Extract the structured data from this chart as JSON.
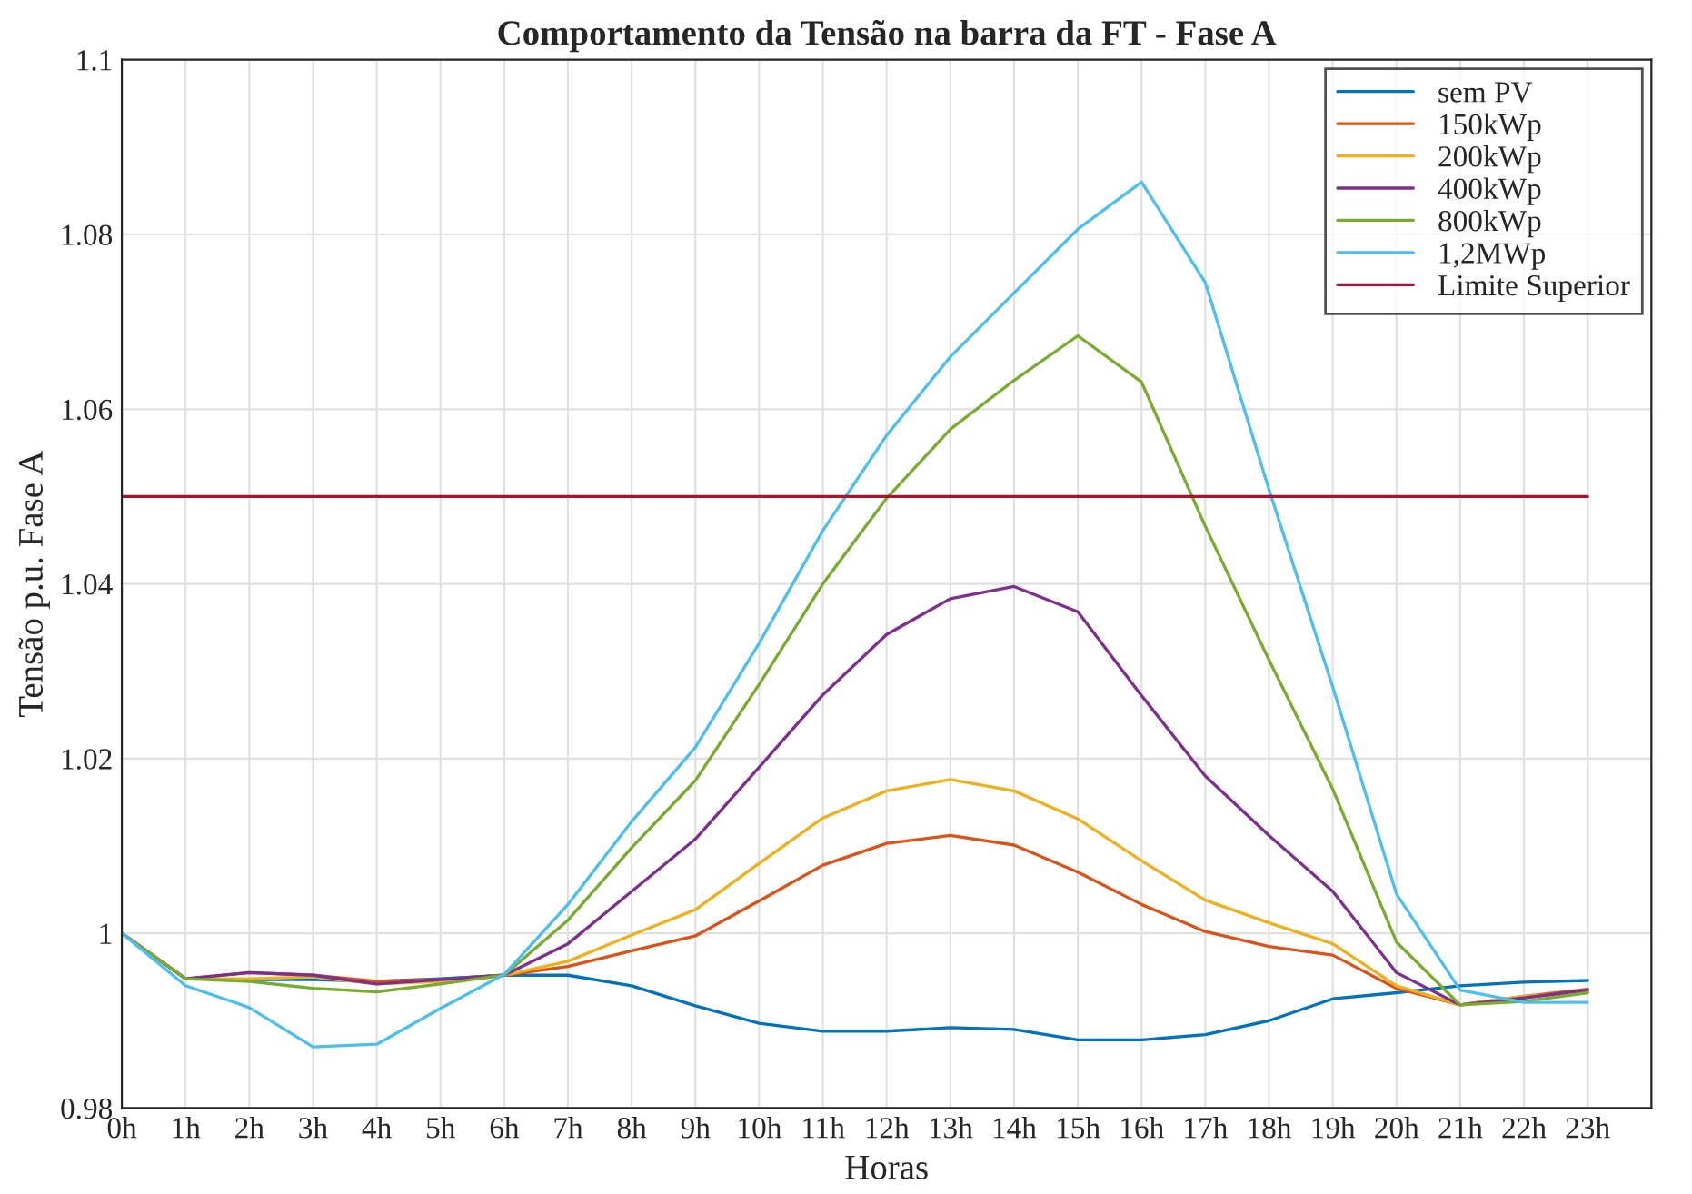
{
  "chart_data": {
    "type": "line",
    "title": "Comportamento da Tensão na barra da FT - Fase A",
    "xlabel": "Horas",
    "ylabel": "Tensão p.u. Fase A",
    "x": [
      0,
      1,
      2,
      3,
      4,
      5,
      6,
      7,
      8,
      9,
      10,
      11,
      12,
      13,
      14,
      15,
      16,
      17,
      18,
      19,
      20,
      21,
      22,
      23
    ],
    "xlim": [
      0,
      24
    ],
    "xticks": [
      {
        "value": 0,
        "label": "0h"
      },
      {
        "value": 1,
        "label": "1h"
      },
      {
        "value": 2,
        "label": "2h"
      },
      {
        "value": 3,
        "label": "3h"
      },
      {
        "value": 4,
        "label": "4h"
      },
      {
        "value": 5,
        "label": "5h"
      },
      {
        "value": 6,
        "label": "6h"
      },
      {
        "value": 7,
        "label": "7h"
      },
      {
        "value": 8,
        "label": "8h"
      },
      {
        "value": 9,
        "label": "9h"
      },
      {
        "value": 10,
        "label": "10h"
      },
      {
        "value": 11,
        "label": "11h"
      },
      {
        "value": 12,
        "label": "12h"
      },
      {
        "value": 13,
        "label": "13h"
      },
      {
        "value": 14,
        "label": "14h"
      },
      {
        "value": 15,
        "label": "15h"
      },
      {
        "value": 16,
        "label": "16h"
      },
      {
        "value": 17,
        "label": "17h"
      },
      {
        "value": 18,
        "label": "18h"
      },
      {
        "value": 19,
        "label": "19h"
      },
      {
        "value": 20,
        "label": "20h"
      },
      {
        "value": 21,
        "label": "21h"
      },
      {
        "value": 22,
        "label": "22h"
      },
      {
        "value": 23,
        "label": "23h"
      }
    ],
    "ylim": [
      0.98,
      1.1
    ],
    "yticks": [
      0.98,
      1,
      1.02,
      1.04,
      1.06,
      1.08,
      1.1
    ],
    "grid": true,
    "legend": "top right",
    "line_style": "solid",
    "marker": "none",
    "series": [
      {
        "name": "sem PV",
        "color": "#0072bd",
        "values": [
          1.0,
          0.9948,
          0.9947,
          0.9947,
          0.9945,
          0.9948,
          0.9952,
          0.9952,
          0.994,
          0.9917,
          0.9897,
          0.9888,
          0.9888,
          0.9892,
          0.989,
          0.9878,
          0.9878,
          0.9884,
          0.99,
          0.9925,
          0.9932,
          0.994,
          0.9944,
          0.9946
        ]
      },
      {
        "name": "150kWp",
        "color": "#d95319",
        "values": [
          1.0,
          0.9948,
          0.9955,
          0.9952,
          0.9945,
          0.9947,
          0.9952,
          0.9962,
          0.998,
          0.9997,
          1.0037,
          1.0078,
          1.0103,
          1.0112,
          1.0101,
          1.007,
          1.0033,
          1.0002,
          0.9985,
          0.9975,
          0.9937,
          0.9918,
          0.9928,
          0.9936
        ]
      },
      {
        "name": "200kWp",
        "color": "#edb120",
        "values": [
          1.0,
          0.9948,
          0.9948,
          0.995,
          0.9942,
          0.9945,
          0.9952,
          0.9968,
          0.9998,
          1.0027,
          1.008,
          1.0132,
          1.0163,
          1.0176,
          1.0163,
          1.0131,
          1.0083,
          1.0038,
          1.0012,
          0.9988,
          0.994,
          0.9918,
          0.9928,
          0.9932
        ]
      },
      {
        "name": "400kWp",
        "color": "#7e2f8e",
        "values": [
          1.0,
          0.9948,
          0.9955,
          0.9952,
          0.9942,
          0.9947,
          0.9952,
          0.9988,
          1.0048,
          1.0108,
          1.019,
          1.0273,
          1.0342,
          1.0383,
          1.0397,
          1.0368,
          1.0272,
          1.018,
          1.0112,
          1.0048,
          0.9955,
          0.9918,
          0.9926,
          0.9935
        ]
      },
      {
        "name": "800kWp",
        "color": "#77ac30",
        "values": [
          1.0,
          0.9948,
          0.9945,
          0.9937,
          0.9933,
          0.9942,
          0.9952,
          1.0015,
          1.0098,
          1.0175,
          1.0285,
          1.04,
          1.0498,
          1.0577,
          1.0633,
          1.0684,
          1.0631,
          1.0466,
          1.0313,
          1.0165,
          0.999,
          0.9918,
          0.9922,
          0.9932
        ]
      },
      {
        "name": "1,2MWp",
        "color": "#4dbeee",
        "values": [
          1.0,
          0.994,
          0.9915,
          0.987,
          0.9873,
          0.9914,
          0.9953,
          1.0033,
          1.0128,
          1.0213,
          1.0332,
          1.0461,
          1.057,
          1.066,
          1.0733,
          1.0806,
          1.086,
          1.0745,
          1.0508,
          1.0282,
          1.0045,
          0.9935,
          0.9921,
          0.9921
        ]
      },
      {
        "name": "Limite Superior",
        "color": "#a2142f",
        "values": [
          1.05,
          1.05,
          1.05,
          1.05,
          1.05,
          1.05,
          1.05,
          1.05,
          1.05,
          1.05,
          1.05,
          1.05,
          1.05,
          1.05,
          1.05,
          1.05,
          1.05,
          1.05,
          1.05,
          1.05,
          1.05,
          1.05,
          1.05,
          1.05
        ]
      }
    ]
  }
}
